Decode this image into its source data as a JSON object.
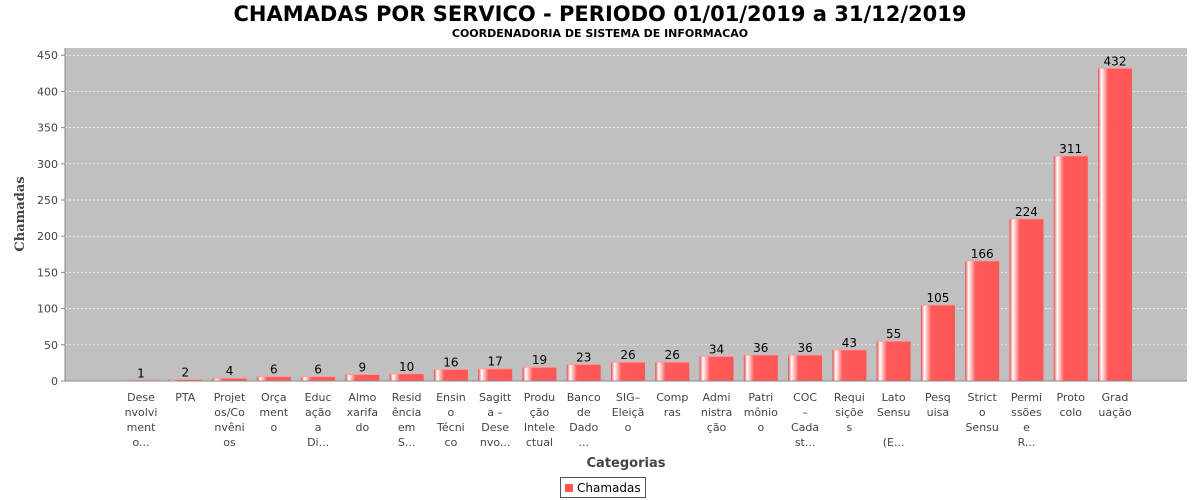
{
  "chart_data": {
    "type": "bar",
    "title": "CHAMADAS POR SERVICO - PERIODO 01/01/2019 a 31/12/2019",
    "subtitle": "COORDENADORIA DE SISTEMA DE INFORMACAO",
    "xlabel": "Categorias",
    "ylabel": "Chamadas",
    "ylim": [
      0,
      460
    ],
    "yticks": [
      0,
      50,
      100,
      150,
      200,
      250,
      300,
      350,
      400,
      450
    ],
    "grid": true,
    "legend_position": "bottom-center",
    "series": [
      {
        "name": "Chamadas",
        "values": [
          1,
          2,
          4,
          6,
          6,
          9,
          10,
          16,
          17,
          19,
          23,
          26,
          26,
          34,
          36,
          36,
          43,
          55,
          105,
          166,
          224,
          311,
          432
        ]
      }
    ],
    "categories": [
      [
        "Dese",
        "nvolvi",
        "ment",
        "o..."
      ],
      [
        "PTA"
      ],
      [
        "Projet",
        "os/Co",
        "nvêni",
        "os"
      ],
      [
        "Orça",
        "ment",
        "o"
      ],
      [
        "Educ",
        "ação",
        "a",
        "Di..."
      ],
      [
        "Almo",
        "xarifa",
        "do"
      ],
      [
        "Resid",
        "ência",
        "em",
        "S..."
      ],
      [
        "Ensin",
        "o",
        "Técni",
        "co"
      ],
      [
        "Sagitt",
        "a –",
        "Dese",
        "nvo..."
      ],
      [
        "Produ",
        "ção",
        "Intele",
        "ctual"
      ],
      [
        "Banco",
        "de",
        "Dado",
        "..."
      ],
      [
        "SIG–",
        "Eleiçã",
        "o"
      ],
      [
        "Comp",
        "ras"
      ],
      [
        "Admi",
        "nistra",
        "ção"
      ],
      [
        "Patri",
        "mônio",
        "o"
      ],
      [
        "COC",
        "–",
        "Cada",
        "st..."
      ],
      [
        "Requi",
        "siçõe",
        "s"
      ],
      [
        "Lato",
        "Sensu",
        "",
        "(E..."
      ],
      [
        "Pesq",
        "uisa"
      ],
      [
        "Strict",
        "o",
        "Sensu"
      ],
      [
        "Permi",
        "ssões",
        "e",
        "R..."
      ],
      [
        "Proto",
        "colo"
      ],
      [
        "Grad",
        "uação"
      ]
    ],
    "colors": {
      "bar": "#ff5555",
      "plot_background": "#c0c0c0",
      "grid": "#ffffff"
    }
  }
}
